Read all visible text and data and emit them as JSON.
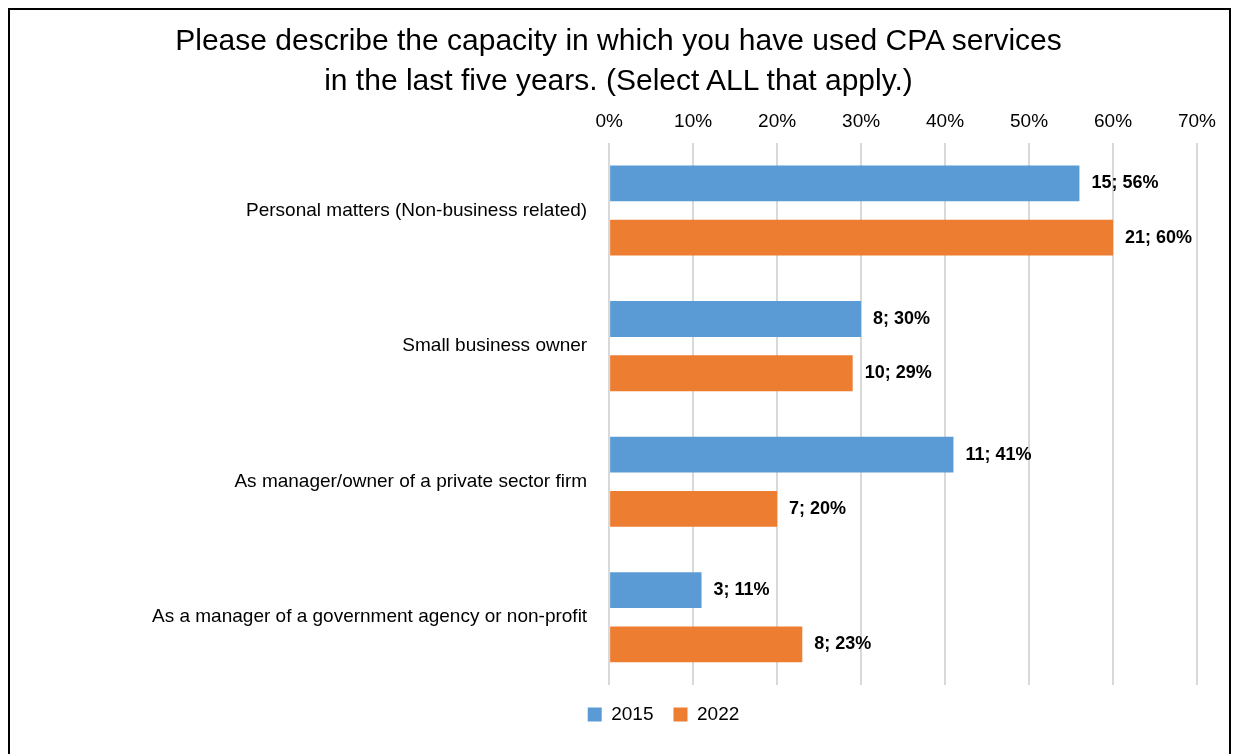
{
  "chart_data": {
    "type": "bar",
    "orientation": "horizontal",
    "title": "Please describe the capacity in which you have used CPA services in the last five years. (Select ALL that apply.)",
    "categories": [
      "Personal matters (Non-business related)",
      "Small business owner",
      "As manager/owner of a private sector firm",
      "As a manager of a government agency or non-profit"
    ],
    "series": [
      {
        "name": "2015",
        "color": "#5b9bd5",
        "values": [
          56,
          30,
          41,
          11
        ],
        "value_labels": [
          "15; 56%",
          "8; 30%",
          "11; 41%",
          "3; 11%"
        ]
      },
      {
        "name": "2022",
        "color": "#ed7d31",
        "values": [
          60,
          29,
          20,
          23
        ],
        "value_labels": [
          "21; 60%",
          "10; 29%",
          "7; 20%",
          "8; 23%"
        ]
      }
    ],
    "xlim": [
      0,
      70
    ],
    "xticks": [
      {
        "value": 0,
        "label": "0%"
      },
      {
        "value": 10,
        "label": "10%"
      },
      {
        "value": 20,
        "label": "20%"
      },
      {
        "value": 30,
        "label": "30%"
      },
      {
        "value": 40,
        "label": "40%"
      },
      {
        "value": 50,
        "label": "50%"
      },
      {
        "value": 60,
        "label": "60%"
      },
      {
        "value": 70,
        "label": "70%"
      }
    ],
    "grid": "x",
    "legend": "bottom"
  }
}
